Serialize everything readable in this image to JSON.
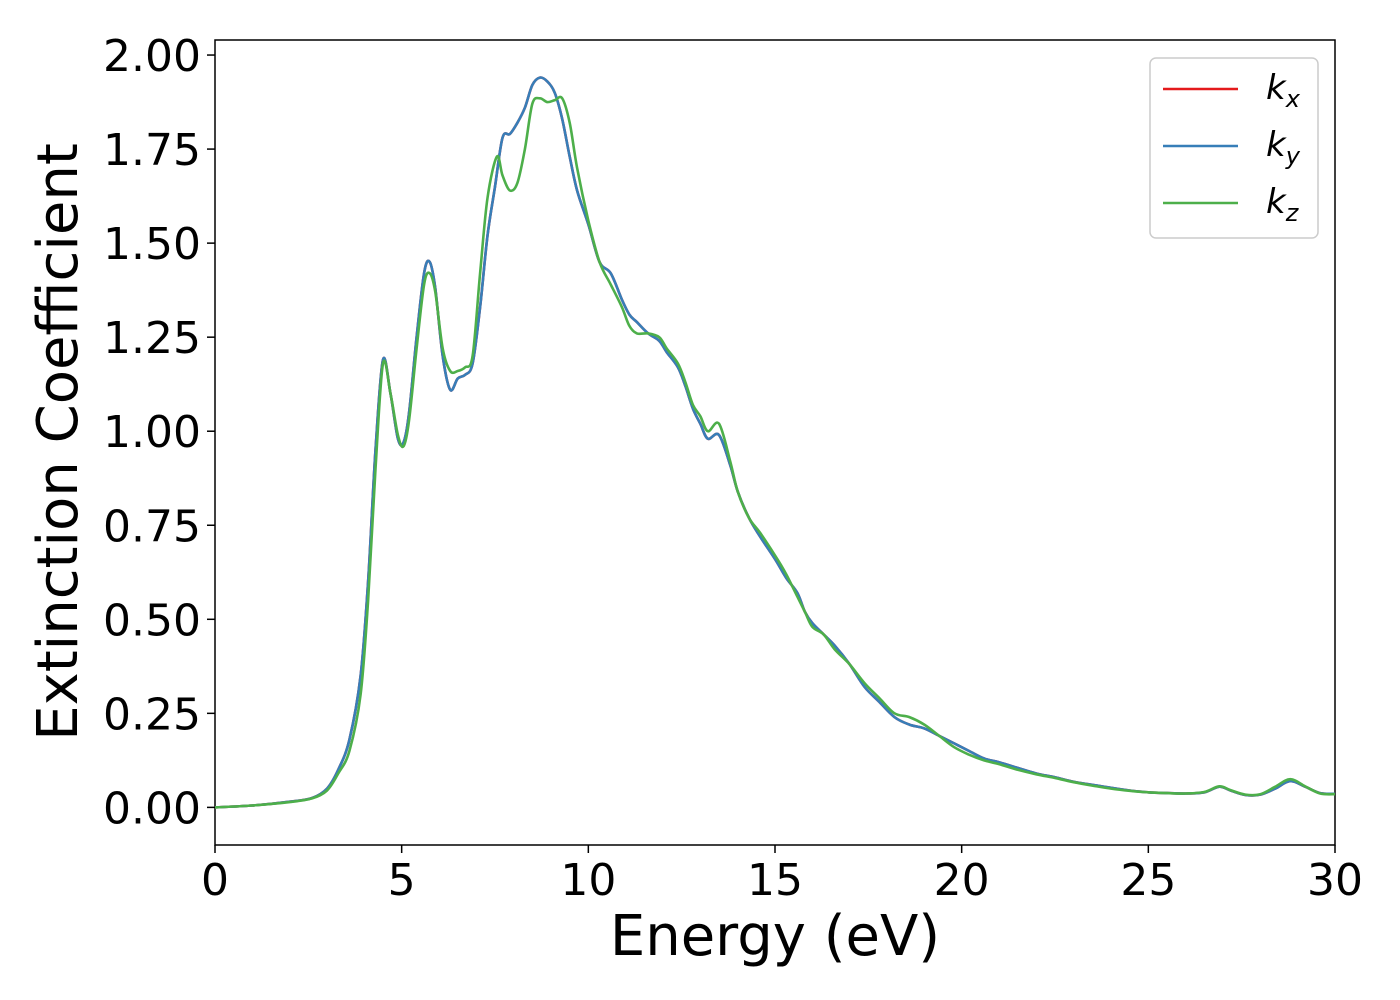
{
  "chart_data": {
    "type": "line",
    "xlabel": "Energy (eV)",
    "ylabel": "Extinction Coefficient",
    "xlim": [
      0,
      30
    ],
    "ylim": [
      -0.1,
      2.04
    ],
    "xticks": [
      0,
      5,
      10,
      15,
      20,
      25,
      30
    ],
    "xtick_labels": [
      "0",
      "5",
      "10",
      "15",
      "20",
      "25",
      "30"
    ],
    "yticks": [
      0,
      0.25,
      0.5,
      0.75,
      1.0,
      1.25,
      1.5,
      1.75,
      2.0
    ],
    "ytick_labels": [
      "0.00",
      "0.25",
      "0.50",
      "0.75",
      "1.00",
      "1.25",
      "1.50",
      "1.75",
      "2.00"
    ],
    "grid": false,
    "legend_position": "top-right",
    "series": [
      {
        "name": "k",
        "subscript": "x",
        "color": "#e41a1c",
        "points": [
          [
            0,
            0
          ],
          [
            1,
            0.005
          ],
          [
            2,
            0.015
          ],
          [
            2.6,
            0.025
          ],
          [
            3,
            0.05
          ],
          [
            3.3,
            0.1
          ],
          [
            3.6,
            0.18
          ],
          [
            3.9,
            0.35
          ],
          [
            4.1,
            0.6
          ],
          [
            4.3,
            0.95
          ],
          [
            4.5,
            1.19
          ],
          [
            4.7,
            1.1
          ],
          [
            4.9,
            0.98
          ],
          [
            5.05,
            0.97
          ],
          [
            5.2,
            1.05
          ],
          [
            5.4,
            1.25
          ],
          [
            5.6,
            1.42
          ],
          [
            5.75,
            1.45
          ],
          [
            5.9,
            1.38
          ],
          [
            6.1,
            1.2
          ],
          [
            6.3,
            1.11
          ],
          [
            6.5,
            1.14
          ],
          [
            6.7,
            1.15
          ],
          [
            6.9,
            1.18
          ],
          [
            7.1,
            1.33
          ],
          [
            7.3,
            1.52
          ],
          [
            7.5,
            1.65
          ],
          [
            7.7,
            1.78
          ],
          [
            7.9,
            1.79
          ],
          [
            8.1,
            1.82
          ],
          [
            8.3,
            1.86
          ],
          [
            8.5,
            1.92
          ],
          [
            8.7,
            1.94
          ],
          [
            8.9,
            1.93
          ],
          [
            9.1,
            1.9
          ],
          [
            9.3,
            1.83
          ],
          [
            9.5,
            1.73
          ],
          [
            9.7,
            1.64
          ],
          [
            10,
            1.55
          ],
          [
            10.3,
            1.45
          ],
          [
            10.6,
            1.42
          ],
          [
            10.9,
            1.35
          ],
          [
            11.1,
            1.31
          ],
          [
            11.3,
            1.29
          ],
          [
            11.6,
            1.26
          ],
          [
            11.9,
            1.24
          ],
          [
            12.1,
            1.21
          ],
          [
            12.4,
            1.17
          ],
          [
            12.6,
            1.12
          ],
          [
            12.8,
            1.06
          ],
          [
            13.0,
            1.02
          ],
          [
            13.2,
            0.98
          ],
          [
            13.5,
            0.99
          ],
          [
            13.8,
            0.91
          ],
          [
            14,
            0.84
          ],
          [
            14.3,
            0.77
          ],
          [
            14.6,
            0.72
          ],
          [
            15,
            0.66
          ],
          [
            15.3,
            0.61
          ],
          [
            15.6,
            0.57
          ],
          [
            15.8,
            0.52
          ],
          [
            16,
            0.49
          ],
          [
            16.3,
            0.46
          ],
          [
            16.6,
            0.43
          ],
          [
            17,
            0.38
          ],
          [
            17.4,
            0.32
          ],
          [
            17.8,
            0.28
          ],
          [
            18.2,
            0.24
          ],
          [
            18.6,
            0.22
          ],
          [
            19,
            0.21
          ],
          [
            19.4,
            0.19
          ],
          [
            19.8,
            0.17
          ],
          [
            20.2,
            0.15
          ],
          [
            20.6,
            0.13
          ],
          [
            21,
            0.12
          ],
          [
            21.5,
            0.105
          ],
          [
            22,
            0.09
          ],
          [
            22.5,
            0.08
          ],
          [
            23,
            0.068
          ],
          [
            23.5,
            0.06
          ],
          [
            24,
            0.052
          ],
          [
            24.5,
            0.045
          ],
          [
            25,
            0.04
          ],
          [
            25.5,
            0.038
          ],
          [
            26,
            0.037
          ],
          [
            26.5,
            0.04
          ],
          [
            26.9,
            0.055
          ],
          [
            27.2,
            0.045
          ],
          [
            27.6,
            0.033
          ],
          [
            28,
            0.034
          ],
          [
            28.4,
            0.05
          ],
          [
            28.8,
            0.07
          ],
          [
            29.2,
            0.055
          ],
          [
            29.6,
            0.038
          ],
          [
            30,
            0.036
          ]
        ]
      },
      {
        "name": "k",
        "subscript": "y",
        "color": "#377eb8",
        "points": [
          [
            0,
            0
          ],
          [
            1,
            0.005
          ],
          [
            2,
            0.015
          ],
          [
            2.6,
            0.025
          ],
          [
            3,
            0.05
          ],
          [
            3.3,
            0.1
          ],
          [
            3.6,
            0.18
          ],
          [
            3.9,
            0.35
          ],
          [
            4.1,
            0.6
          ],
          [
            4.3,
            0.95
          ],
          [
            4.5,
            1.19
          ],
          [
            4.7,
            1.1
          ],
          [
            4.9,
            0.98
          ],
          [
            5.05,
            0.97
          ],
          [
            5.2,
            1.05
          ],
          [
            5.4,
            1.25
          ],
          [
            5.6,
            1.42
          ],
          [
            5.75,
            1.45
          ],
          [
            5.9,
            1.38
          ],
          [
            6.1,
            1.2
          ],
          [
            6.3,
            1.11
          ],
          [
            6.5,
            1.14
          ],
          [
            6.7,
            1.15
          ],
          [
            6.9,
            1.18
          ],
          [
            7.1,
            1.33
          ],
          [
            7.3,
            1.52
          ],
          [
            7.5,
            1.65
          ],
          [
            7.7,
            1.78
          ],
          [
            7.9,
            1.79
          ],
          [
            8.1,
            1.82
          ],
          [
            8.3,
            1.86
          ],
          [
            8.5,
            1.92
          ],
          [
            8.7,
            1.94
          ],
          [
            8.9,
            1.93
          ],
          [
            9.1,
            1.9
          ],
          [
            9.3,
            1.83
          ],
          [
            9.5,
            1.73
          ],
          [
            9.7,
            1.64
          ],
          [
            10,
            1.55
          ],
          [
            10.3,
            1.45
          ],
          [
            10.6,
            1.42
          ],
          [
            10.9,
            1.35
          ],
          [
            11.1,
            1.31
          ],
          [
            11.3,
            1.29
          ],
          [
            11.6,
            1.26
          ],
          [
            11.9,
            1.24
          ],
          [
            12.1,
            1.21
          ],
          [
            12.4,
            1.17
          ],
          [
            12.6,
            1.12
          ],
          [
            12.8,
            1.06
          ],
          [
            13.0,
            1.02
          ],
          [
            13.2,
            0.98
          ],
          [
            13.5,
            0.99
          ],
          [
            13.8,
            0.91
          ],
          [
            14,
            0.84
          ],
          [
            14.3,
            0.77
          ],
          [
            14.6,
            0.72
          ],
          [
            15,
            0.66
          ],
          [
            15.3,
            0.61
          ],
          [
            15.6,
            0.57
          ],
          [
            15.8,
            0.52
          ],
          [
            16,
            0.49
          ],
          [
            16.3,
            0.46
          ],
          [
            16.6,
            0.43
          ],
          [
            17,
            0.38
          ],
          [
            17.4,
            0.32
          ],
          [
            17.8,
            0.28
          ],
          [
            18.2,
            0.24
          ],
          [
            18.6,
            0.22
          ],
          [
            19,
            0.21
          ],
          [
            19.4,
            0.19
          ],
          [
            19.8,
            0.17
          ],
          [
            20.2,
            0.15
          ],
          [
            20.6,
            0.13
          ],
          [
            21,
            0.12
          ],
          [
            21.5,
            0.105
          ],
          [
            22,
            0.09
          ],
          [
            22.5,
            0.08
          ],
          [
            23,
            0.068
          ],
          [
            23.5,
            0.06
          ],
          [
            24,
            0.052
          ],
          [
            24.5,
            0.045
          ],
          [
            25,
            0.04
          ],
          [
            25.5,
            0.038
          ],
          [
            26,
            0.037
          ],
          [
            26.5,
            0.04
          ],
          [
            26.9,
            0.055
          ],
          [
            27.2,
            0.045
          ],
          [
            27.6,
            0.033
          ],
          [
            28,
            0.034
          ],
          [
            28.4,
            0.05
          ],
          [
            28.8,
            0.07
          ],
          [
            29.2,
            0.055
          ],
          [
            29.6,
            0.038
          ],
          [
            30,
            0.036
          ]
        ]
      },
      {
        "name": "k",
        "subscript": "z",
        "color": "#4daf4a",
        "points": [
          [
            0,
            0
          ],
          [
            1,
            0.005
          ],
          [
            2,
            0.014
          ],
          [
            2.6,
            0.024
          ],
          [
            3,
            0.045
          ],
          [
            3.3,
            0.09
          ],
          [
            3.6,
            0.15
          ],
          [
            3.9,
            0.3
          ],
          [
            4.1,
            0.55
          ],
          [
            4.3,
            0.9
          ],
          [
            4.5,
            1.18
          ],
          [
            4.7,
            1.1
          ],
          [
            4.9,
            0.99
          ],
          [
            5.05,
            0.96
          ],
          [
            5.2,
            1.03
          ],
          [
            5.4,
            1.22
          ],
          [
            5.6,
            1.39
          ],
          [
            5.75,
            1.42
          ],
          [
            5.9,
            1.37
          ],
          [
            6.1,
            1.22
          ],
          [
            6.3,
            1.16
          ],
          [
            6.5,
            1.16
          ],
          [
            6.7,
            1.17
          ],
          [
            6.9,
            1.2
          ],
          [
            7.1,
            1.42
          ],
          [
            7.3,
            1.62
          ],
          [
            7.55,
            1.73
          ],
          [
            7.7,
            1.68
          ],
          [
            7.9,
            1.64
          ],
          [
            8.1,
            1.66
          ],
          [
            8.3,
            1.75
          ],
          [
            8.5,
            1.87
          ],
          [
            8.7,
            1.885
          ],
          [
            8.9,
            1.875
          ],
          [
            9.1,
            1.88
          ],
          [
            9.3,
            1.885
          ],
          [
            9.5,
            1.82
          ],
          [
            9.7,
            1.7
          ],
          [
            10,
            1.56
          ],
          [
            10.3,
            1.45
          ],
          [
            10.6,
            1.39
          ],
          [
            10.9,
            1.33
          ],
          [
            11.1,
            1.28
          ],
          [
            11.3,
            1.26
          ],
          [
            11.6,
            1.26
          ],
          [
            11.9,
            1.25
          ],
          [
            12.1,
            1.22
          ],
          [
            12.4,
            1.18
          ],
          [
            12.6,
            1.13
          ],
          [
            12.8,
            1.07
          ],
          [
            13.0,
            1.04
          ],
          [
            13.2,
            1.0
          ],
          [
            13.5,
            1.02
          ],
          [
            13.8,
            0.92
          ],
          [
            14,
            0.84
          ],
          [
            14.3,
            0.77
          ],
          [
            14.6,
            0.73
          ],
          [
            15,
            0.67
          ],
          [
            15.3,
            0.62
          ],
          [
            15.6,
            0.56
          ],
          [
            15.8,
            0.52
          ],
          [
            16,
            0.48
          ],
          [
            16.3,
            0.46
          ],
          [
            16.6,
            0.42
          ],
          [
            17,
            0.38
          ],
          [
            17.4,
            0.33
          ],
          [
            17.8,
            0.29
          ],
          [
            18.2,
            0.25
          ],
          [
            18.6,
            0.24
          ],
          [
            19,
            0.22
          ],
          [
            19.4,
            0.19
          ],
          [
            19.8,
            0.16
          ],
          [
            20.2,
            0.14
          ],
          [
            20.6,
            0.125
          ],
          [
            21,
            0.115
          ],
          [
            21.5,
            0.1
          ],
          [
            22,
            0.088
          ],
          [
            22.5,
            0.078
          ],
          [
            23,
            0.067
          ],
          [
            23.5,
            0.058
          ],
          [
            24,
            0.05
          ],
          [
            24.5,
            0.044
          ],
          [
            25,
            0.04
          ],
          [
            25.5,
            0.038
          ],
          [
            26,
            0.037
          ],
          [
            26.5,
            0.041
          ],
          [
            26.9,
            0.056
          ],
          [
            27.2,
            0.046
          ],
          [
            27.6,
            0.034
          ],
          [
            28,
            0.035
          ],
          [
            28.4,
            0.055
          ],
          [
            28.8,
            0.075
          ],
          [
            29.2,
            0.056
          ],
          [
            29.6,
            0.037
          ],
          [
            30,
            0.035
          ]
        ]
      }
    ]
  }
}
